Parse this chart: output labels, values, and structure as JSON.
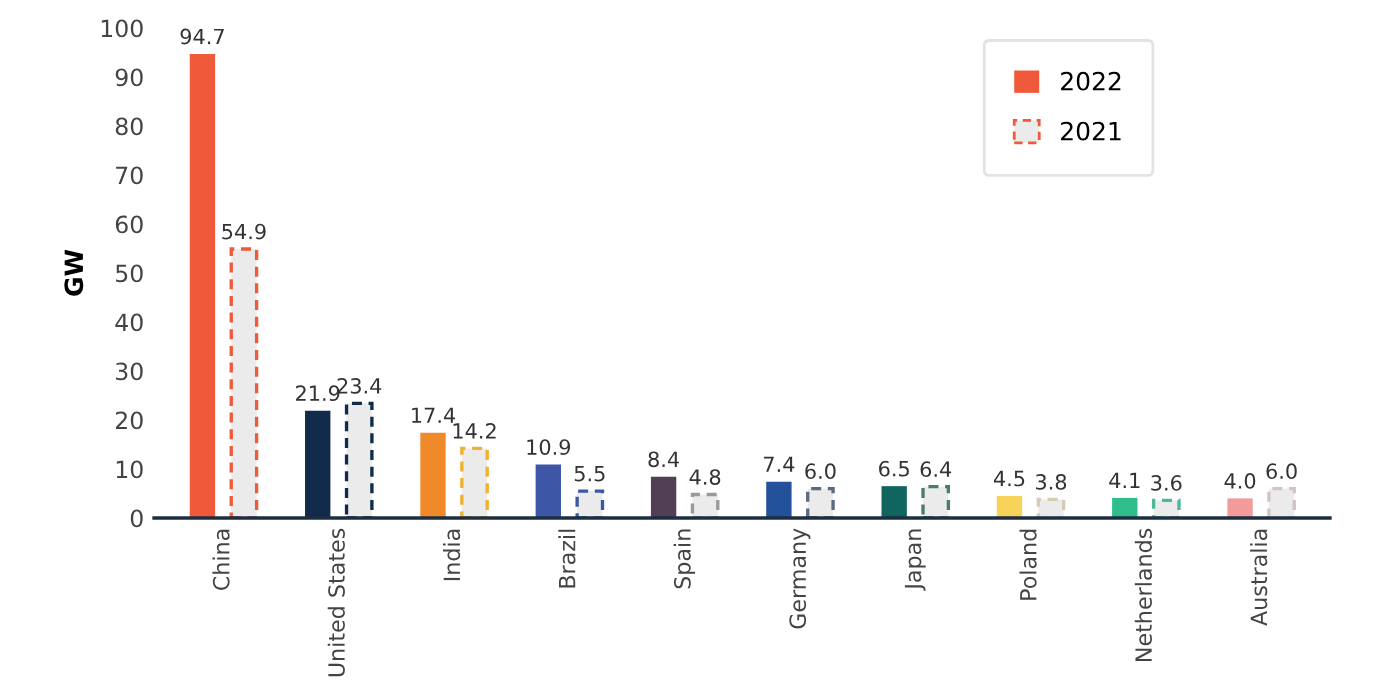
{
  "chart_data": {
    "type": "bar",
    "ylabel": "GW",
    "categories": [
      "China",
      "United States",
      "India",
      "Brazil",
      "Spain",
      "Germany",
      "Japan",
      "Poland",
      "Netherlands",
      "Australia"
    ],
    "series": [
      {
        "name": "2022",
        "colors": [
          "#ef5a3a",
          "#132b4a",
          "#f0892a",
          "#3d57a6",
          "#523f56",
          "#23519a",
          "#10665f",
          "#f7d35a",
          "#2fbd8c",
          "#f39b9b"
        ],
        "values": [
          94.7,
          21.9,
          17.4,
          10.9,
          8.4,
          7.4,
          6.5,
          4.5,
          4.1,
          4.0
        ],
        "value_labels": [
          "94.7",
          "21.9",
          "17.4",
          "10.9",
          "8.4",
          "7.4",
          "6.5",
          "4.5",
          "4.1",
          "4.0"
        ]
      },
      {
        "name": "2021",
        "color": "#ebebeb",
        "line_style": "dashed",
        "colors": [
          "#ef5a3a",
          "#132b4a",
          "#f0b030",
          "#3d57a6",
          "#9a9a9a",
          "#5a6a80",
          "#4a7a72",
          "#d8cbb5",
          "#4ab89a",
          "#d4c3c3"
        ],
        "values": [
          54.9,
          23.4,
          14.2,
          5.5,
          4.8,
          6.0,
          6.4,
          3.8,
          3.6,
          6.0
        ],
        "value_labels": [
          "54.9",
          "23.4",
          "14.2",
          "5.5",
          "4.8",
          "6.0",
          "6.4",
          "3.8",
          "3.6",
          "6.0"
        ]
      }
    ],
    "ylim": [
      0,
      100
    ],
    "yticks": [
      0,
      10,
      20,
      30,
      40,
      50,
      60,
      70,
      80,
      90,
      100
    ],
    "legend": "top right",
    "grid": false
  }
}
